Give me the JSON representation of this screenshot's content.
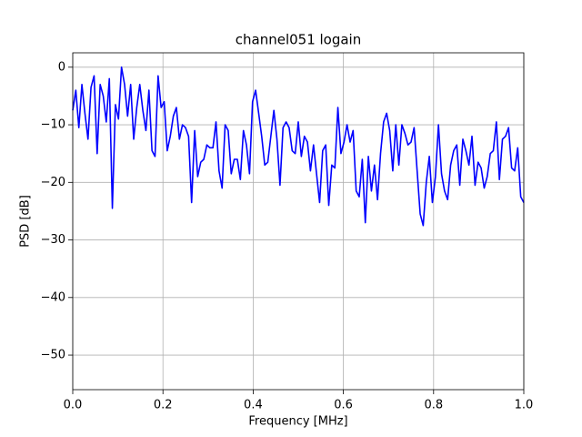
{
  "chart_data": {
    "type": "line",
    "title": "channel051 logain",
    "x_label": "Frequency [MHz]",
    "y_label": "PSD [dB]",
    "color": "#0000ff",
    "grid": true,
    "xlim": [
      0,
      1
    ],
    "ylim": [
      -56,
      2.5
    ],
    "xticks": [
      {
        "value": 0,
        "label": "0.0"
      },
      {
        "value": 0.2,
        "label": "0.2"
      },
      {
        "value": 0.4,
        "label": "0.4"
      },
      {
        "value": 0.6,
        "label": "0.6"
      },
      {
        "value": 0.8,
        "label": "0.8"
      },
      {
        "value": 1,
        "label": "1.0"
      }
    ],
    "yticks": [
      0,
      {
        "value": -10,
        "label": "−10"
      },
      {
        "value": -20,
        "label": "−20"
      },
      {
        "value": -30,
        "label": "−30"
      },
      {
        "value": -40,
        "label": "−40"
      },
      {
        "value": -50,
        "label": "−50"
      }
    ],
    "x": [
      0,
      0.0068,
      0.0135,
      0.0203,
      0.027,
      0.0338,
      0.0405,
      0.0473,
      0.0541,
      0.0608,
      0.0676,
      0.0743,
      0.0811,
      0.0878,
      0.0946,
      0.1014,
      0.1081,
      0.1149,
      0.1216,
      0.1284,
      0.1351,
      0.1419,
      0.1486,
      0.1554,
      0.1622,
      0.1689,
      0.1757,
      0.1824,
      0.1892,
      0.1959,
      0.2027,
      0.2095,
      0.2162,
      0.223,
      0.2297,
      0.2365,
      0.2432,
      0.25,
      0.2568,
      0.2635,
      0.2703,
      0.277,
      0.2838,
      0.2905,
      0.2973,
      0.3041,
      0.3108,
      0.3176,
      0.3243,
      0.3311,
      0.3378,
      0.3446,
      0.3514,
      0.3581,
      0.3649,
      0.3716,
      0.3784,
      0.3851,
      0.3919,
      0.3986,
      0.4054,
      0.4122,
      0.4189,
      0.4257,
      0.4324,
      0.4392,
      0.4459,
      0.4527,
      0.4595,
      0.4662,
      0.473,
      0.4797,
      0.4865,
      0.4932,
      0.5,
      0.5068,
      0.5135,
      0.5203,
      0.527,
      0.5338,
      0.5405,
      0.5473,
      0.5541,
      0.5608,
      0.5676,
      0.5743,
      0.5811,
      0.5878,
      0.5946,
      0.6014,
      0.6081,
      0.6149,
      0.6216,
      0.6284,
      0.6351,
      0.6419,
      0.6486,
      0.6554,
      0.6622,
      0.6689,
      0.6757,
      0.6824,
      0.6892,
      0.6959,
      0.7027,
      0.7095,
      0.7162,
      0.723,
      0.7297,
      0.7365,
      0.7432,
      0.75,
      0.7568,
      0.7635,
      0.7703,
      0.777,
      0.7838,
      0.7905,
      0.7973,
      0.8041,
      0.8108,
      0.8176,
      0.8243,
      0.8311,
      0.8378,
      0.8446,
      0.8514,
      0.8581,
      0.8649,
      0.8716,
      0.8784,
      0.8851,
      0.8919,
      0.8986,
      0.9054,
      0.9122,
      0.9189,
      0.9257,
      0.9324,
      0.9392,
      0.9459,
      0.9527,
      0.9595,
      0.9662,
      0.973,
      0.9797,
      0.9865,
      0.9932,
      1
    ],
    "values": [
      -7.5,
      -4,
      -10.5,
      -3,
      -8,
      -12.5,
      -3.5,
      -1.5,
      -15,
      -3,
      -5,
      -9.5,
      -2,
      -24.5,
      -6.5,
      -9,
      0,
      -3,
      -8.5,
      -3,
      -12.5,
      -7,
      -3,
      -7.5,
      -11,
      -4,
      -14.5,
      -15.5,
      -1.5,
      -7,
      -6,
      -14.5,
      -12,
      -8.5,
      -7,
      -12.5,
      -10,
      -10.5,
      -12,
      -23.5,
      -11,
      -19,
      -16.5,
      -16,
      -13.5,
      -14,
      -14,
      -9.5,
      -18,
      -21,
      -10,
      -11,
      -18.5,
      -16,
      -16,
      -19.5,
      -11,
      -13.5,
      -18.5,
      -6,
      -4,
      -8,
      -12,
      -17,
      -16.5,
      -12,
      -7.5,
      -12.5,
      -20.5,
      -10.5,
      -9.5,
      -10.5,
      -14.5,
      -15,
      -9.5,
      -15.5,
      -12,
      -13,
      -18,
      -13.5,
      -18.5,
      -23.5,
      -14.5,
      -13.5,
      -24,
      -17,
      -17.5,
      -7,
      -15,
      -13,
      -10,
      -13,
      -11,
      -21.5,
      -22.5,
      -16,
      -27,
      -15.5,
      -21.5,
      -17,
      -23,
      -15,
      -9.5,
      -8,
      -11,
      -18,
      -10,
      -17,
      -10,
      -11.5,
      -13.5,
      -13,
      -10.5,
      -18,
      -25.5,
      -27.5,
      -20,
      -15.5,
      -23.5,
      -19,
      -10,
      -18.5,
      -21.5,
      -23,
      -17,
      -14.5,
      -13.5,
      -20.5,
      -12.5,
      -14.5,
      -17,
      -12,
      -20.5,
      -16.5,
      -17.5,
      -21,
      -19,
      -15,
      -14.5,
      -9.5,
      -19.5,
      -12.5,
      -12,
      -10.5,
      -17.5,
      -18,
      -14,
      -22.5,
      -23.5
    ]
  }
}
